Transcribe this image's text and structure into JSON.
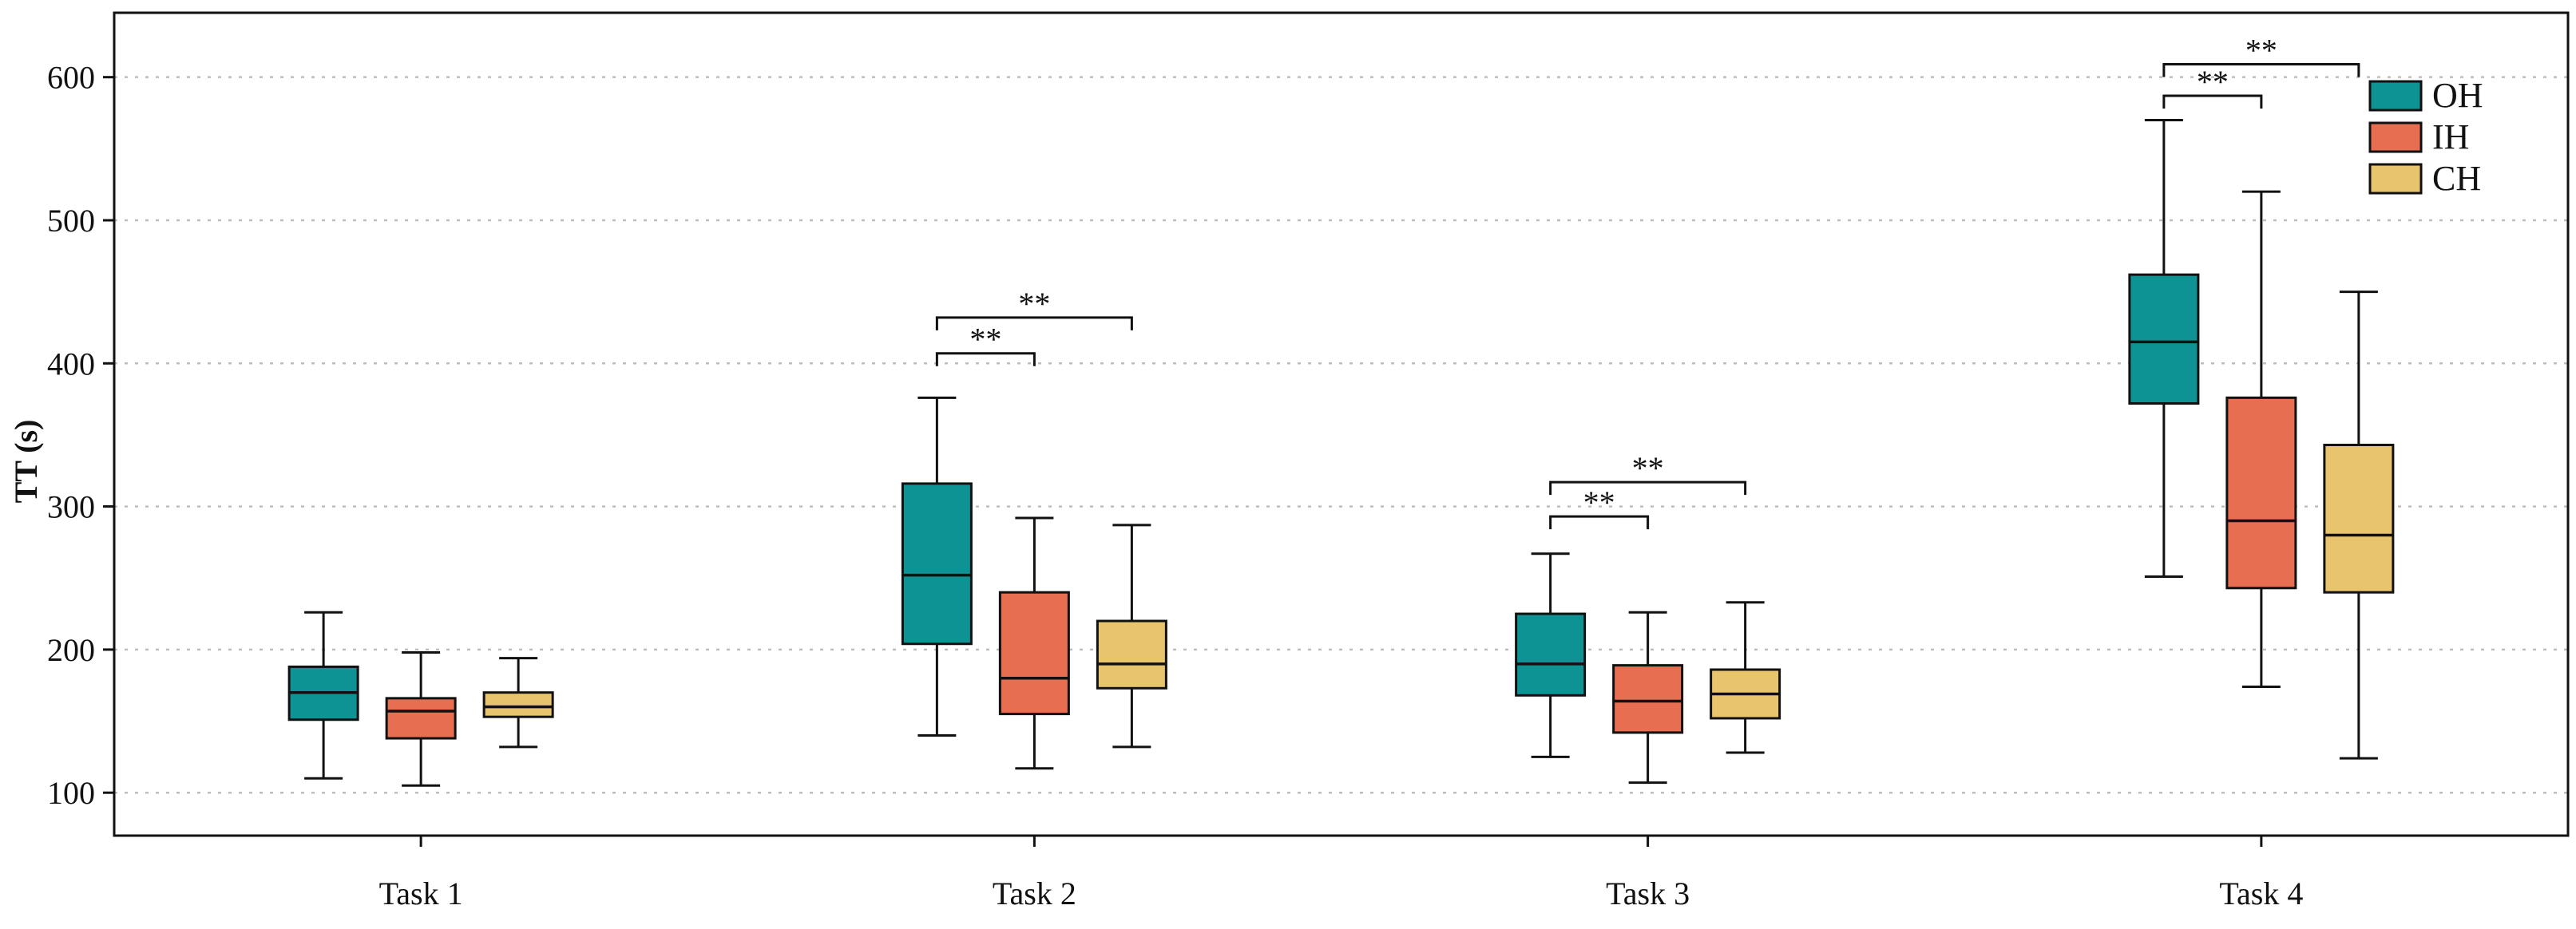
{
  "chart_data": {
    "type": "box",
    "ylabel": "TT (s)",
    "xlabel": "",
    "ylim": [
      70,
      645
    ],
    "yticks": [
      100,
      200,
      300,
      400,
      500,
      600
    ],
    "grid": "horizontal-dotted",
    "legend_position": "top-right",
    "categories": [
      "Task 1",
      "Task 2",
      "Task 3",
      "Task 4"
    ],
    "series": [
      {
        "name": "OH",
        "color": "#0e9394",
        "boxes": [
          {
            "min": 110,
            "q1": 151,
            "median": 170,
            "q3": 188,
            "max": 226
          },
          {
            "min": 140,
            "q1": 204,
            "median": 252,
            "q3": 316,
            "max": 376
          },
          {
            "min": 125,
            "q1": 168,
            "median": 190,
            "q3": 225,
            "max": 267
          },
          {
            "min": 251,
            "q1": 372,
            "median": 415,
            "q3": 462,
            "max": 570
          }
        ]
      },
      {
        "name": "IH",
        "color": "#e86e52",
        "boxes": [
          {
            "min": 105,
            "q1": 138,
            "median": 157,
            "q3": 166,
            "max": 198
          },
          {
            "min": 117,
            "q1": 155,
            "median": 180,
            "q3": 240,
            "max": 292
          },
          {
            "min": 107,
            "q1": 142,
            "median": 164,
            "q3": 189,
            "max": 226
          },
          {
            "min": 174,
            "q1": 243,
            "median": 290,
            "q3": 376,
            "max": 520
          }
        ]
      },
      {
        "name": "CH",
        "color": "#e8c56d",
        "boxes": [
          {
            "min": 132,
            "q1": 153,
            "median": 160,
            "q3": 170,
            "max": 194
          },
          {
            "min": 132,
            "q1": 173,
            "median": 190,
            "q3": 220,
            "max": 287
          },
          {
            "min": 128,
            "q1": 152,
            "median": 169,
            "q3": 186,
            "max": 233
          },
          {
            "min": 124,
            "q1": 240,
            "median": 280,
            "q3": 343,
            "max": 450
          }
        ]
      }
    ],
    "significance": [
      {
        "category": 1,
        "from": 0,
        "to": 1,
        "y": 407,
        "label": "**"
      },
      {
        "category": 1,
        "from": 0,
        "to": 2,
        "y": 432,
        "label": "**"
      },
      {
        "category": 2,
        "from": 0,
        "to": 1,
        "y": 293,
        "label": "**"
      },
      {
        "category": 2,
        "from": 0,
        "to": 2,
        "y": 317,
        "label": "**"
      },
      {
        "category": 3,
        "from": 0,
        "to": 1,
        "y": 587,
        "label": "**"
      },
      {
        "category": 3,
        "from": 0,
        "to": 2,
        "y": 609,
        "label": "**"
      }
    ]
  }
}
